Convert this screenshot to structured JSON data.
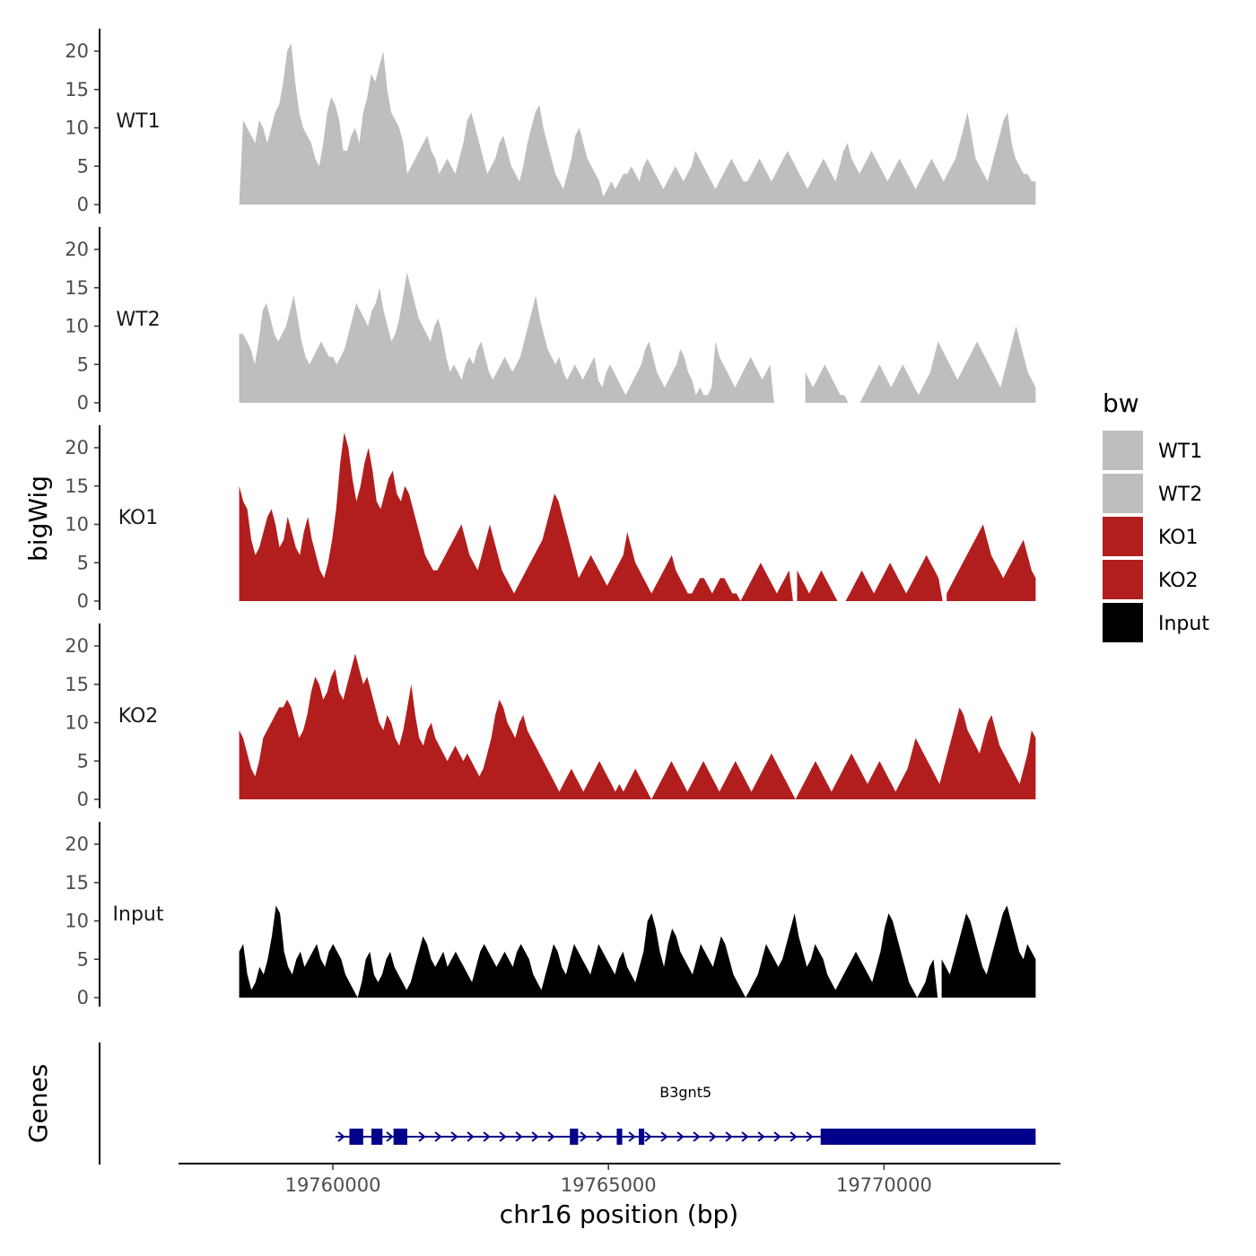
{
  "chart_data": {
    "type": "area",
    "chromosome": "chr16",
    "ylabel": "bigWig",
    "xlabel": "chr16 position (bp)",
    "xlim": [
      19757200,
      19773200
    ],
    "ylim": [
      0,
      22
    ],
    "y_ticks": [
      "0",
      "5",
      "10",
      "15",
      "20"
    ],
    "x_ticks": [
      {
        "value": 19760000,
        "label": "19760000"
      },
      {
        "value": 19765000,
        "label": "19765000"
      },
      {
        "value": 19770000,
        "label": "19770000"
      }
    ],
    "x_range": [
      19758300,
      19772750
    ],
    "legend": {
      "title": "bw",
      "items": [
        {
          "label": "WT1",
          "color": "#bebebe"
        },
        {
          "label": "WT2",
          "color": "#bebebe"
        },
        {
          "label": "KO1",
          "color": "#b21e1e"
        },
        {
          "label": "KO2",
          "color": "#b21e1e"
        },
        {
          "label": "Input",
          "color": "#000000"
        }
      ]
    },
    "series": [
      {
        "name": "WT1",
        "color": "#bebebe",
        "values": [
          0,
          11,
          10,
          9,
          8,
          11,
          10,
          8,
          10,
          12,
          13,
          16,
          20,
          21,
          16,
          12,
          10,
          9,
          8,
          6,
          5,
          8,
          12,
          14,
          13,
          11,
          7,
          7,
          9,
          10,
          8,
          12,
          14,
          17,
          16,
          18,
          20,
          15,
          12,
          11,
          10,
          8,
          4,
          5,
          6,
          7,
          8,
          9,
          7,
          6,
          4,
          5,
          6,
          5,
          4,
          6,
          8,
          11,
          12,
          10,
          8,
          6,
          4,
          5,
          6,
          8,
          9,
          7,
          5,
          4,
          3,
          5,
          8,
          10,
          12,
          13,
          10,
          8,
          6,
          4,
          3,
          2,
          4,
          6,
          9,
          10,
          8,
          6,
          5,
          4,
          3,
          1,
          2,
          3,
          2,
          3,
          4,
          4,
          5,
          4,
          3,
          5,
          6,
          5,
          4,
          3,
          2,
          3,
          4,
          5,
          4,
          3,
          4,
          5,
          7,
          6,
          5,
          4,
          3,
          2,
          3,
          4,
          5,
          6,
          5,
          4,
          3,
          3,
          4,
          5,
          6,
          5,
          4,
          3,
          4,
          5,
          6,
          7,
          6,
          5,
          4,
          3,
          2,
          3,
          4,
          5,
          6,
          5,
          4,
          3,
          5,
          7,
          8,
          6,
          5,
          4,
          5,
          6,
          7,
          6,
          5,
          4,
          3,
          4,
          5,
          6,
          5,
          4,
          3,
          2,
          3,
          4,
          5,
          6,
          5,
          4,
          3,
          4,
          5,
          6,
          8,
          10,
          12,
          9,
          6,
          5,
          4,
          3,
          5,
          7,
          9,
          11,
          12,
          8,
          6,
          5,
          4,
          4,
          3,
          3
        ],
        "gaps": []
      },
      {
        "name": "WT2",
        "color": "#bebebe",
        "values": [
          9,
          9,
          8,
          7,
          5,
          8,
          12,
          13,
          11,
          9,
          8,
          9,
          10,
          12,
          14,
          11,
          8,
          6,
          5,
          6,
          7,
          8,
          7,
          6,
          6,
          5,
          6,
          7,
          9,
          11,
          13,
          12,
          11,
          10,
          12,
          13,
          15,
          12,
          10,
          8,
          9,
          11,
          14,
          17,
          15,
          13,
          11,
          10,
          9,
          8,
          10,
          11,
          9,
          6,
          4,
          5,
          4,
          3,
          5,
          6,
          5,
          7,
          8,
          6,
          4,
          3,
          4,
          5,
          6,
          5,
          4,
          5,
          6,
          8,
          10,
          12,
          14,
          11,
          9,
          7,
          6,
          5,
          6,
          4,
          3,
          4,
          5,
          4,
          3,
          4,
          5,
          6,
          3,
          2,
          4,
          5,
          4,
          3,
          2,
          1,
          2,
          3,
          4,
          5,
          7,
          8,
          6,
          4,
          3,
          2,
          3,
          4,
          5,
          7,
          6,
          4,
          3,
          1,
          2,
          1,
          1,
          2,
          8,
          6,
          5,
          4,
          3,
          2,
          3,
          4,
          5,
          6,
          5,
          4,
          3,
          4,
          5,
          6,
          5,
          4,
          3,
          4,
          5,
          6,
          5,
          4,
          3,
          2,
          3,
          4,
          5,
          4,
          3,
          2,
          1,
          1,
          0,
          0,
          0,
          0,
          1,
          2,
          3,
          4,
          5,
          4,
          3,
          2,
          3,
          4,
          5,
          4,
          3,
          2,
          1,
          2,
          3,
          4,
          6,
          8,
          7,
          6,
          5,
          4,
          3,
          4,
          5,
          6,
          7,
          8,
          7,
          6,
          5,
          4,
          3,
          2,
          4,
          6,
          8,
          10,
          8,
          6,
          4,
          3,
          2
        ],
        "gaps": [
          [
            19767950,
            19768550
          ]
        ]
      },
      {
        "name": "KO1",
        "color": "#b21e1e",
        "values": [
          15,
          13,
          12,
          8,
          6,
          7,
          9,
          11,
          12,
          10,
          7,
          8,
          11,
          9,
          7,
          6,
          9,
          11,
          8,
          6,
          4,
          3,
          5,
          8,
          12,
          18,
          22,
          20,
          16,
          13,
          15,
          18,
          20,
          17,
          13,
          12,
          14,
          16,
          17,
          14,
          13,
          15,
          14,
          12,
          10,
          8,
          6,
          5,
          4,
          4,
          5,
          6,
          7,
          8,
          9,
          10,
          8,
          6,
          5,
          4,
          6,
          8,
          10,
          8,
          6,
          4,
          3,
          2,
          1,
          2,
          3,
          4,
          5,
          6,
          7,
          8,
          10,
          12,
          14,
          13,
          11,
          9,
          7,
          5,
          3,
          4,
          5,
          6,
          5,
          4,
          3,
          2,
          3,
          4,
          5,
          6,
          9,
          7,
          5,
          4,
          3,
          2,
          1,
          2,
          3,
          4,
          5,
          6,
          4,
          3,
          2,
          1,
          1,
          2,
          3,
          3,
          2,
          1,
          2,
          3,
          3,
          2,
          1,
          1,
          0,
          1,
          2,
          3,
          4,
          5,
          4,
          3,
          2,
          1,
          2,
          3,
          4,
          5,
          4,
          3,
          2,
          1,
          2,
          3,
          4,
          3,
          2,
          1,
          0,
          0,
          0,
          1,
          2,
          3,
          4,
          3,
          2,
          1,
          2,
          3,
          4,
          5,
          4,
          3,
          2,
          1,
          2,
          3,
          4,
          5,
          6,
          5,
          4,
          3,
          2,
          1,
          2,
          3,
          4,
          5,
          6,
          7,
          8,
          9,
          10,
          8,
          6,
          5,
          4,
          3,
          4,
          5,
          6,
          7,
          8,
          6,
          4,
          3
        ],
        "gaps": [
          [
            19768300,
            19768400
          ],
          [
            19771000,
            19771100
          ]
        ]
      },
      {
        "name": "KO2",
        "color": "#b21e1e",
        "values": [
          9,
          8,
          6,
          4,
          3,
          5,
          8,
          9,
          10,
          11,
          12,
          12,
          13,
          12,
          10,
          8,
          9,
          11,
          14,
          16,
          15,
          13,
          14,
          16,
          17,
          14,
          13,
          15,
          17,
          19,
          17,
          15,
          16,
          14,
          12,
          10,
          9,
          11,
          10,
          8,
          7,
          9,
          12,
          15,
          11,
          8,
          7,
          9,
          10,
          8,
          7,
          6,
          5,
          6,
          7,
          6,
          5,
          6,
          5,
          4,
          3,
          4,
          6,
          8,
          11,
          13,
          12,
          10,
          9,
          8,
          10,
          11,
          9,
          8,
          7,
          6,
          5,
          4,
          3,
          2,
          1,
          2,
          3,
          4,
          3,
          2,
          1,
          2,
          3,
          4,
          5,
          4,
          3,
          2,
          1,
          2,
          1,
          2,
          3,
          4,
          3,
          2,
          1,
          0,
          1,
          2,
          3,
          4,
          5,
          4,
          3,
          2,
          1,
          2,
          3,
          4,
          5,
          4,
          3,
          2,
          1,
          2,
          3,
          4,
          5,
          4,
          3,
          2,
          1,
          2,
          3,
          4,
          5,
          6,
          5,
          4,
          3,
          2,
          1,
          0,
          1,
          2,
          3,
          4,
          5,
          4,
          3,
          2,
          1,
          2,
          3,
          4,
          5,
          6,
          5,
          4,
          3,
          2,
          3,
          4,
          5,
          4,
          3,
          2,
          1,
          2,
          3,
          4,
          6,
          8,
          7,
          6,
          5,
          4,
          3,
          2,
          4,
          6,
          8,
          10,
          12,
          11,
          9,
          8,
          7,
          6,
          8,
          10,
          11,
          9,
          7,
          6,
          5,
          4,
          3,
          2,
          4,
          6,
          9,
          8
        ],
        "gaps": []
      },
      {
        "name": "Input",
        "color": "#000000",
        "values": [
          6,
          7,
          3,
          1,
          2,
          4,
          3,
          5,
          8,
          12,
          11,
          6,
          4,
          3,
          5,
          6,
          4,
          5,
          6,
          7,
          5,
          4,
          6,
          7,
          6,
          5,
          3,
          2,
          1,
          0,
          2,
          5,
          6,
          3,
          2,
          3,
          5,
          6,
          4,
          3,
          2,
          1,
          2,
          4,
          6,
          8,
          7,
          5,
          4,
          5,
          6,
          4,
          5,
          6,
          5,
          4,
          3,
          2,
          4,
          6,
          7,
          6,
          5,
          4,
          5,
          6,
          5,
          4,
          6,
          7,
          6,
          5,
          3,
          2,
          1,
          3,
          5,
          7,
          6,
          4,
          3,
          5,
          7,
          6,
          5,
          4,
          3,
          5,
          7,
          6,
          5,
          4,
          3,
          5,
          6,
          4,
          3,
          2,
          4,
          6,
          10,
          11,
          9,
          6,
          4,
          7,
          9,
          8,
          6,
          5,
          4,
          3,
          5,
          7,
          6,
          5,
          4,
          6,
          8,
          7,
          5,
          3,
          2,
          1,
          0,
          1,
          2,
          3,
          5,
          7,
          6,
          5,
          4,
          5,
          7,
          9,
          11,
          8,
          6,
          4,
          5,
          7,
          6,
          5,
          3,
          2,
          1,
          2,
          3,
          4,
          5,
          6,
          5,
          4,
          3,
          2,
          4,
          6,
          9,
          11,
          10,
          8,
          6,
          4,
          2,
          1,
          0,
          1,
          2,
          4,
          5,
          6,
          5,
          4,
          3,
          5,
          7,
          9,
          11,
          10,
          8,
          6,
          4,
          3,
          5,
          7,
          9,
          11,
          12,
          10,
          8,
          6,
          5,
          7,
          6,
          5
        ],
        "gaps": [
          [
            19770900,
            19771000
          ]
        ]
      }
    ],
    "genes": {
      "label": "Genes",
      "name": "B3gnt5",
      "strand": "+",
      "line_range": [
        19760050,
        19772750
      ],
      "exons": [
        {
          "start": 19760300,
          "end": 19760550
        },
        {
          "start": 19760700,
          "end": 19760900
        },
        {
          "start": 19761100,
          "end": 19761350
        },
        {
          "start": 19764300,
          "end": 19764450
        },
        {
          "start": 19765150,
          "end": 19765250
        },
        {
          "start": 19765550,
          "end": 19765650
        },
        {
          "start": 19768850,
          "end": 19772750
        }
      ],
      "color": "#00008b"
    }
  }
}
